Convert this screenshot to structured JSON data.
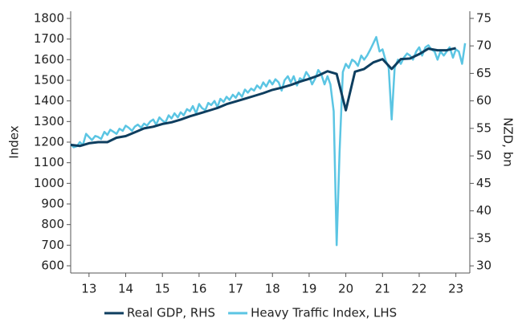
{
  "chart_data": {
    "type": "line",
    "y_label": "Index",
    "y2_label": "NZD, bn",
    "xlim": [
      2013,
      2023.88
    ],
    "xticks": [
      {
        "value": 2013.5,
        "label": "13"
      },
      {
        "value": 2014.5,
        "label": "14"
      },
      {
        "value": 2015.5,
        "label": "15"
      },
      {
        "value": 2016.5,
        "label": "16"
      },
      {
        "value": 2017.5,
        "label": "17"
      },
      {
        "value": 2018.5,
        "label": "18"
      },
      {
        "value": 2019.5,
        "label": "19"
      },
      {
        "value": 2020.5,
        "label": "20"
      },
      {
        "value": 2021.5,
        "label": "21"
      },
      {
        "value": 2022.5,
        "label": "22"
      },
      {
        "value": 2023.5,
        "label": "23"
      }
    ],
    "ylim": [
      565,
      1835
    ],
    "yticks": [
      600,
      700,
      800,
      900,
      1000,
      1100,
      1200,
      1300,
      1400,
      1500,
      1600,
      1700,
      1800
    ],
    "y2lim": [
      28.7,
      76.3
    ],
    "y2ticks": [
      30,
      35,
      40,
      45,
      50,
      55,
      60,
      65,
      70,
      75
    ],
    "series": [
      {
        "name": "Real GDP, RHS",
        "color": "#0e3e5f",
        "axis": "y2",
        "x": [
          2013,
          2013.25,
          2013.5,
          2013.75,
          2014,
          2014.25,
          2014.5,
          2014.75,
          2015,
          2015.25,
          2015.5,
          2015.75,
          2016,
          2016.25,
          2016.5,
          2016.75,
          2017,
          2017.25,
          2017.5,
          2017.75,
          2018,
          2018.25,
          2018.5,
          2018.75,
          2019,
          2019.25,
          2019.5,
          2019.75,
          2020,
          2020.25,
          2020.5,
          2020.75,
          2021,
          2021.25,
          2021.5,
          2021.75,
          2022,
          2022.25,
          2022.5,
          2022.75,
          2023,
          2023.25,
          2023.5
        ],
        "values": [
          52.0,
          51.8,
          52.3,
          52.5,
          52.5,
          53.3,
          53.6,
          54.3,
          55.0,
          55.3,
          55.8,
          56.1,
          56.6,
          57.2,
          57.7,
          58.2,
          58.7,
          59.4,
          59.9,
          60.4,
          60.9,
          61.4,
          62.0,
          62.4,
          62.9,
          63.5,
          64.0,
          64.6,
          65.4,
          64.9,
          58.3,
          65.3,
          65.8,
          67.0,
          67.6,
          65.8,
          67.6,
          67.7,
          68.5,
          69.5,
          69.2,
          69.2,
          69.6
        ]
      },
      {
        "name": "Heavy Traffic Index, LHS",
        "color": "#5bc5e3",
        "axis": "y",
        "x": [
          2013.0,
          2013.08,
          2013.17,
          2013.25,
          2013.33,
          2013.42,
          2013.5,
          2013.58,
          2013.67,
          2013.75,
          2013.83,
          2013.92,
          2014.0,
          2014.08,
          2014.17,
          2014.25,
          2014.33,
          2014.42,
          2014.5,
          2014.58,
          2014.67,
          2014.75,
          2014.83,
          2014.92,
          2015.0,
          2015.08,
          2015.17,
          2015.25,
          2015.33,
          2015.42,
          2015.5,
          2015.58,
          2015.67,
          2015.75,
          2015.83,
          2015.92,
          2016.0,
          2016.08,
          2016.17,
          2016.25,
          2016.33,
          2016.42,
          2016.5,
          2016.58,
          2016.67,
          2016.75,
          2016.83,
          2016.92,
          2017.0,
          2017.08,
          2017.17,
          2017.25,
          2017.33,
          2017.42,
          2017.5,
          2017.58,
          2017.67,
          2017.75,
          2017.83,
          2017.92,
          2018.0,
          2018.08,
          2018.17,
          2018.25,
          2018.33,
          2018.42,
          2018.5,
          2018.58,
          2018.67,
          2018.75,
          2018.83,
          2018.92,
          2019.0,
          2019.08,
          2019.17,
          2019.25,
          2019.33,
          2019.42,
          2019.5,
          2019.58,
          2019.67,
          2019.75,
          2019.83,
          2019.92,
          2020.0,
          2020.08,
          2020.17,
          2020.25,
          2020.33,
          2020.42,
          2020.5,
          2020.58,
          2020.67,
          2020.75,
          2020.83,
          2020.92,
          2021.0,
          2021.08,
          2021.17,
          2021.25,
          2021.33,
          2021.42,
          2021.5,
          2021.58,
          2021.67,
          2021.75,
          2021.83,
          2021.92,
          2022.0,
          2022.08,
          2022.17,
          2022.25,
          2022.33,
          2022.42,
          2022.5,
          2022.58,
          2022.67,
          2022.75,
          2022.83,
          2022.92,
          2023.0,
          2023.08,
          2023.17,
          2023.25,
          2023.33,
          2023.42,
          2023.5,
          2023.58,
          2023.67,
          2023.75
        ],
        "values": [
          1190,
          1175,
          1180,
          1200,
          1185,
          1240,
          1225,
          1210,
          1230,
          1225,
          1215,
          1250,
          1235,
          1260,
          1250,
          1240,
          1265,
          1255,
          1280,
          1270,
          1255,
          1275,
          1285,
          1270,
          1290,
          1280,
          1300,
          1310,
          1285,
          1320,
          1305,
          1295,
          1330,
          1315,
          1340,
          1320,
          1345,
          1330,
          1360,
          1350,
          1375,
          1340,
          1385,
          1365,
          1355,
          1390,
          1380,
          1400,
          1370,
          1410,
          1395,
          1420,
          1405,
          1430,
          1415,
          1440,
          1420,
          1455,
          1440,
          1460,
          1450,
          1475,
          1460,
          1490,
          1470,
          1500,
          1480,
          1505,
          1490,
          1450,
          1500,
          1520,
          1490,
          1520,
          1475,
          1510,
          1500,
          1540,
          1520,
          1480,
          1510,
          1550,
          1530,
          1480,
          1520,
          1480,
          1350,
          700,
          1150,
          1540,
          1580,
          1560,
          1600,
          1590,
          1570,
          1620,
          1600,
          1620,
          1650,
          1680,
          1710,
          1640,
          1650,
          1600,
          1560,
          1310,
          1560,
          1600,
          1580,
          1610,
          1630,
          1620,
          1600,
          1640,
          1660,
          1620,
          1660,
          1670,
          1650,
          1640,
          1600,
          1640,
          1620,
          1640,
          1660,
          1610,
          1650,
          1640,
          1580,
          1680
        ]
      }
    ]
  }
}
